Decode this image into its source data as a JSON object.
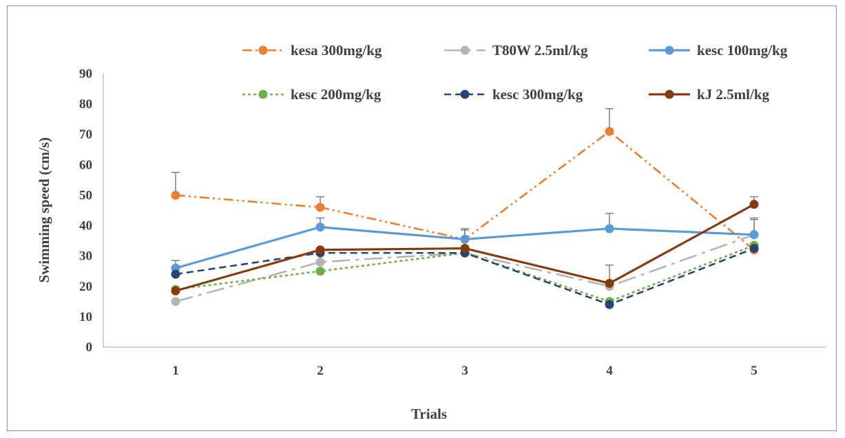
{
  "chart_data": {
    "type": "line",
    "title": "",
    "xlabel": "Trials",
    "ylabel": "Swimming speed (cm/s)",
    "ylim": [
      0,
      90
    ],
    "yticks": [
      0,
      10,
      20,
      30,
      40,
      50,
      60,
      70,
      80,
      90
    ],
    "categories": [
      "1",
      "2",
      "3",
      "4",
      "5"
    ],
    "grid": false,
    "legend_position": "top",
    "series": [
      {
        "name": "kesa 300mg/kg",
        "color": "#ed7d31",
        "dash": "dash-dot-dot",
        "values": [
          50,
          46,
          35.5,
          71,
          32
        ],
        "errors": [
          7.5,
          3.5,
          3,
          7.5,
          0
        ]
      },
      {
        "name": "T80W 2.5ml/kg",
        "color": "#b4b4b4",
        "dash": "long-dash-dot",
        "values": [
          15,
          28,
          31,
          20,
          37
        ],
        "errors": [
          0,
          0,
          0,
          7,
          5
        ]
      },
      {
        "name": "kesc 100mg/kg",
        "color": "#5b9bd5",
        "dash": "solid",
        "values": [
          26,
          39.5,
          35.5,
          39,
          37
        ],
        "errors": [
          2.5,
          3,
          3.5,
          5,
          5.5
        ]
      },
      {
        "name": "kesc 200mg/kg",
        "color": "#70ad47",
        "dash": "dotted",
        "values": [
          19,
          25,
          31,
          15,
          33.5
        ],
        "errors": [
          0,
          0,
          0,
          0,
          0
        ]
      },
      {
        "name": "kesc 300mg/kg",
        "color": "#264478",
        "dash": "dashed",
        "values": [
          24,
          31,
          31,
          14,
          32.5
        ],
        "errors": [
          0,
          0,
          0,
          0,
          0
        ]
      },
      {
        "name": "kJ 2.5ml/kg",
        "color": "#843c0c",
        "dash": "solid",
        "values": [
          18.5,
          32,
          32.5,
          21,
          47
        ],
        "errors": [
          0,
          0,
          0,
          0,
          2.5
        ]
      }
    ]
  }
}
